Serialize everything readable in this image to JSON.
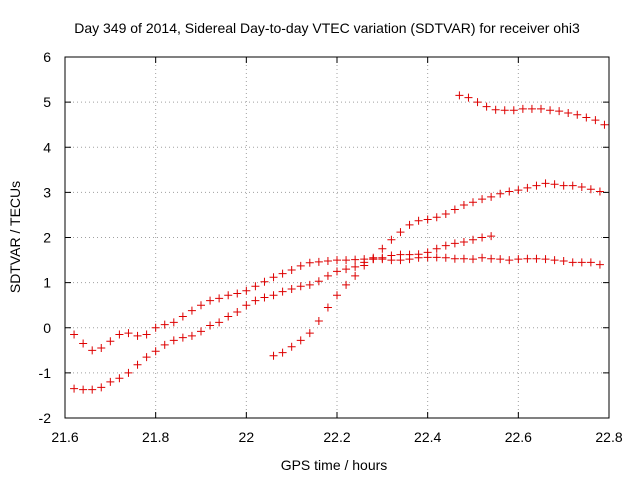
{
  "chart_data": {
    "type": "scatter",
    "title": "Day 349 of 2014, Sidereal Day-to-day VTEC variation (SDTVAR) for receiver ohi3",
    "xlabel": "GPS time / hours",
    "ylabel": "SDTVAR / TECUs",
    "xlim": [
      21.6,
      22.8
    ],
    "ylim": [
      -2,
      6
    ],
    "x_ticks": [
      "21.6",
      "21.8",
      "22",
      "22.2",
      "22.4",
      "22.6",
      "22.8"
    ],
    "y_ticks": [
      "-2",
      "-1",
      "0",
      "1",
      "2",
      "3",
      "4",
      "5",
      "6"
    ],
    "grid": true,
    "marker": "plus",
    "color": "#dd0000",
    "series": [
      {
        "points": [
          [
            21.62,
            -0.15
          ],
          [
            21.64,
            -0.35
          ],
          [
            21.66,
            -0.5
          ],
          [
            21.68,
            -0.45
          ],
          [
            21.7,
            -0.3
          ],
          [
            21.72,
            -0.15
          ],
          [
            21.74,
            -0.12
          ],
          [
            21.76,
            -0.18
          ],
          [
            21.78,
            -0.15
          ],
          [
            21.8,
            0.0
          ],
          [
            21.82,
            0.07
          ],
          [
            21.84,
            0.12
          ],
          [
            21.86,
            0.25
          ],
          [
            21.88,
            0.38
          ],
          [
            21.9,
            0.5
          ],
          [
            21.92,
            0.6
          ],
          [
            21.94,
            0.65
          ],
          [
            21.96,
            0.72
          ],
          [
            21.98,
            0.76
          ],
          [
            22.0,
            0.82
          ],
          [
            22.02,
            0.92
          ],
          [
            22.04,
            1.02
          ],
          [
            22.06,
            1.12
          ],
          [
            22.08,
            1.2
          ],
          [
            22.1,
            1.28
          ],
          [
            22.12,
            1.37
          ],
          [
            22.14,
            1.44
          ],
          [
            22.16,
            1.46
          ],
          [
            22.18,
            1.48
          ],
          [
            22.2,
            1.5
          ],
          [
            22.22,
            1.5
          ],
          [
            22.24,
            1.51
          ],
          [
            22.26,
            1.52
          ],
          [
            22.28,
            1.52
          ],
          [
            22.3,
            1.52
          ],
          [
            22.32,
            1.5
          ],
          [
            22.34,
            1.5
          ],
          [
            22.36,
            1.52
          ],
          [
            22.38,
            1.55
          ],
          [
            22.4,
            1.56
          ],
          [
            22.42,
            1.56
          ],
          [
            22.44,
            1.55
          ],
          [
            22.46,
            1.53
          ],
          [
            22.48,
            1.53
          ],
          [
            22.5,
            1.52
          ],
          [
            22.52,
            1.55
          ],
          [
            22.54,
            1.53
          ],
          [
            22.56,
            1.52
          ],
          [
            22.58,
            1.5
          ],
          [
            22.6,
            1.52
          ],
          [
            22.62,
            1.53
          ],
          [
            22.64,
            1.53
          ],
          [
            22.66,
            1.52
          ],
          [
            22.68,
            1.5
          ],
          [
            22.7,
            1.48
          ],
          [
            22.72,
            1.45
          ],
          [
            22.74,
            1.45
          ],
          [
            22.76,
            1.45
          ],
          [
            22.78,
            1.4
          ]
        ]
      },
      {
        "points": [
          [
            21.62,
            -1.35
          ],
          [
            21.64,
            -1.37
          ],
          [
            21.66,
            -1.37
          ],
          [
            21.68,
            -1.32
          ],
          [
            21.7,
            -1.2
          ],
          [
            21.72,
            -1.12
          ],
          [
            21.74,
            -1.0
          ],
          [
            21.76,
            -0.82
          ],
          [
            21.78,
            -0.65
          ],
          [
            21.8,
            -0.52
          ],
          [
            21.82,
            -0.38
          ],
          [
            21.84,
            -0.28
          ],
          [
            21.86,
            -0.22
          ],
          [
            21.88,
            -0.18
          ],
          [
            21.9,
            -0.08
          ],
          [
            21.92,
            0.05
          ],
          [
            21.94,
            0.12
          ],
          [
            21.96,
            0.25
          ],
          [
            21.98,
            0.35
          ],
          [
            22.0,
            0.5
          ],
          [
            22.02,
            0.6
          ],
          [
            22.04,
            0.67
          ],
          [
            22.06,
            0.72
          ],
          [
            22.08,
            0.8
          ],
          [
            22.1,
            0.86
          ],
          [
            22.12,
            0.92
          ],
          [
            22.14,
            0.95
          ],
          [
            22.16,
            1.03
          ],
          [
            22.18,
            1.15
          ],
          [
            22.2,
            1.25
          ],
          [
            22.22,
            1.3
          ],
          [
            22.24,
            1.35
          ],
          [
            22.26,
            1.45
          ],
          [
            22.28,
            1.52
          ],
          [
            22.3,
            1.55
          ],
          [
            22.32,
            1.6
          ],
          [
            22.34,
            1.62
          ],
          [
            22.36,
            1.62
          ],
          [
            22.38,
            1.63
          ],
          [
            22.4,
            1.67
          ],
          [
            22.42,
            1.75
          ],
          [
            22.44,
            1.82
          ],
          [
            22.46,
            1.87
          ],
          [
            22.48,
            1.9
          ],
          [
            22.5,
            1.95
          ],
          [
            22.52,
            2.0
          ],
          [
            22.54,
            2.03
          ]
        ]
      },
      {
        "points": [
          [
            22.06,
            -0.62
          ],
          [
            22.08,
            -0.55
          ],
          [
            22.1,
            -0.42
          ],
          [
            22.12,
            -0.28
          ],
          [
            22.14,
            -0.12
          ],
          [
            22.16,
            0.15
          ],
          [
            22.18,
            0.45
          ],
          [
            22.2,
            0.72
          ],
          [
            22.22,
            0.95
          ],
          [
            22.24,
            1.15
          ],
          [
            22.26,
            1.38
          ],
          [
            22.28,
            1.55
          ],
          [
            22.3,
            1.75
          ],
          [
            22.32,
            1.95
          ],
          [
            22.34,
            2.12
          ],
          [
            22.36,
            2.28
          ],
          [
            22.38,
            2.37
          ],
          [
            22.4,
            2.4
          ],
          [
            22.42,
            2.45
          ],
          [
            22.44,
            2.52
          ],
          [
            22.46,
            2.62
          ],
          [
            22.48,
            2.72
          ],
          [
            22.5,
            2.78
          ],
          [
            22.52,
            2.85
          ],
          [
            22.54,
            2.9
          ],
          [
            22.56,
            2.97
          ],
          [
            22.58,
            3.02
          ],
          [
            22.6,
            3.05
          ],
          [
            22.62,
            3.1
          ],
          [
            22.64,
            3.15
          ],
          [
            22.66,
            3.2
          ],
          [
            22.68,
            3.18
          ],
          [
            22.7,
            3.15
          ],
          [
            22.72,
            3.15
          ],
          [
            22.74,
            3.12
          ],
          [
            22.76,
            3.07
          ],
          [
            22.78,
            3.02
          ]
        ]
      },
      {
        "points": [
          [
            22.47,
            5.15
          ],
          [
            22.49,
            5.1
          ],
          [
            22.51,
            5.0
          ],
          [
            22.53,
            4.9
          ],
          [
            22.55,
            4.83
          ],
          [
            22.57,
            4.82
          ],
          [
            22.59,
            4.82
          ],
          [
            22.61,
            4.85
          ],
          [
            22.63,
            4.85
          ],
          [
            22.65,
            4.85
          ],
          [
            22.67,
            4.82
          ],
          [
            22.69,
            4.8
          ],
          [
            22.71,
            4.76
          ],
          [
            22.73,
            4.72
          ],
          [
            22.75,
            4.66
          ],
          [
            22.77,
            4.6
          ],
          [
            22.79,
            4.5
          ]
        ]
      }
    ]
  }
}
